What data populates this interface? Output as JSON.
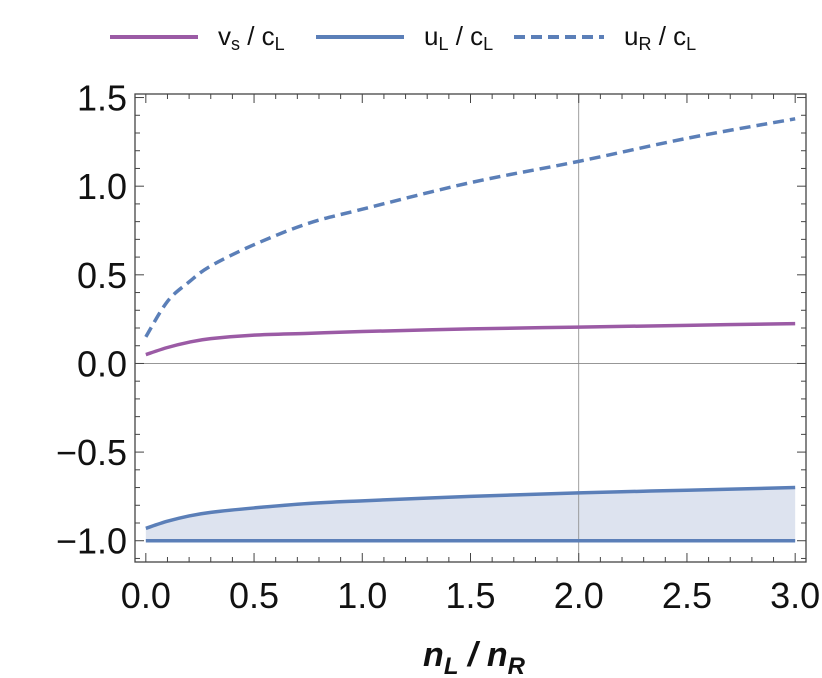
{
  "chart_data": {
    "type": "line",
    "title": "",
    "xlabel": "n_L / n_R",
    "xlabel_parts": {
      "a": "n",
      "a_sub": "L",
      "sep": " / ",
      "b": "n",
      "b_sub": "R"
    },
    "ylabel": "",
    "xlim": [
      -0.05,
      3.05
    ],
    "ylim": [
      -1.12,
      1.52
    ],
    "xticks": [
      0.0,
      0.5,
      1.0,
      1.5,
      2.0,
      2.5,
      3.0
    ],
    "xtick_labels": [
      "0.0",
      "0.5",
      "1.0",
      "1.5",
      "2.0",
      "2.5",
      "3.0"
    ],
    "yticks": [
      -1.0,
      -0.5,
      0.0,
      0.5,
      1.0,
      1.5
    ],
    "ytick_labels": [
      "−1.0",
      "−0.5",
      "0.0",
      "0.5",
      "1.0",
      "1.5"
    ],
    "grid": false,
    "reference_lines": {
      "x": 2.0,
      "y": 0.0
    },
    "legend_position": "top",
    "x": [
      0.0,
      0.1,
      0.2,
      0.3,
      0.5,
      0.75,
      1.0,
      1.5,
      2.0,
      2.5,
      3.0
    ],
    "series": [
      {
        "name": "v_s / c_L",
        "name_main": "v",
        "name_sub": "s",
        "name_tail": " / c",
        "name_tail_sub": "L",
        "style": "solid",
        "color": "#9b5ba5",
        "values": [
          0.05,
          0.09,
          0.12,
          0.14,
          0.16,
          0.17,
          0.18,
          0.195,
          0.205,
          0.215,
          0.225
        ]
      },
      {
        "name": "u_L / c_L",
        "name_main": "u",
        "name_sub": "L",
        "name_tail": " / c",
        "name_tail_sub": "L",
        "style": "solid",
        "color": "#5b7fb8",
        "values": [
          -0.93,
          -0.89,
          -0.86,
          -0.84,
          -0.815,
          -0.79,
          -0.775,
          -0.75,
          -0.73,
          -0.715,
          -0.7
        ]
      },
      {
        "name": "u_R / c_L",
        "name_main": "u",
        "name_sub": "R",
        "name_tail": " / c",
        "name_tail_sub": "L",
        "style": "dashed",
        "color": "#5b7fb8",
        "values": [
          0.15,
          0.35,
          0.46,
          0.55,
          0.67,
          0.79,
          0.87,
          1.02,
          1.14,
          1.27,
          1.38
        ]
      }
    ],
    "lower_line": {
      "value": -1.0,
      "color": "#5b7fb8"
    },
    "fill": {
      "between": [
        "u_L / c_L",
        -1.0
      ],
      "color": "#dde3ef"
    }
  }
}
